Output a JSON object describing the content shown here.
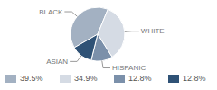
{
  "chart_data": {
    "type": "pie",
    "categories": [
      "BLACK",
      "WHITE",
      "HISPANIC",
      "ASIAN"
    ],
    "values": [
      39.5,
      34.9,
      12.8,
      12.8
    ],
    "value_labels": [
      "39.5%",
      "34.9%",
      "12.8%",
      "12.8%"
    ],
    "colors": [
      "#a3b1c2",
      "#d5dbe4",
      "#7b90aa",
      "#2f5276"
    ],
    "legend": "bottom"
  }
}
